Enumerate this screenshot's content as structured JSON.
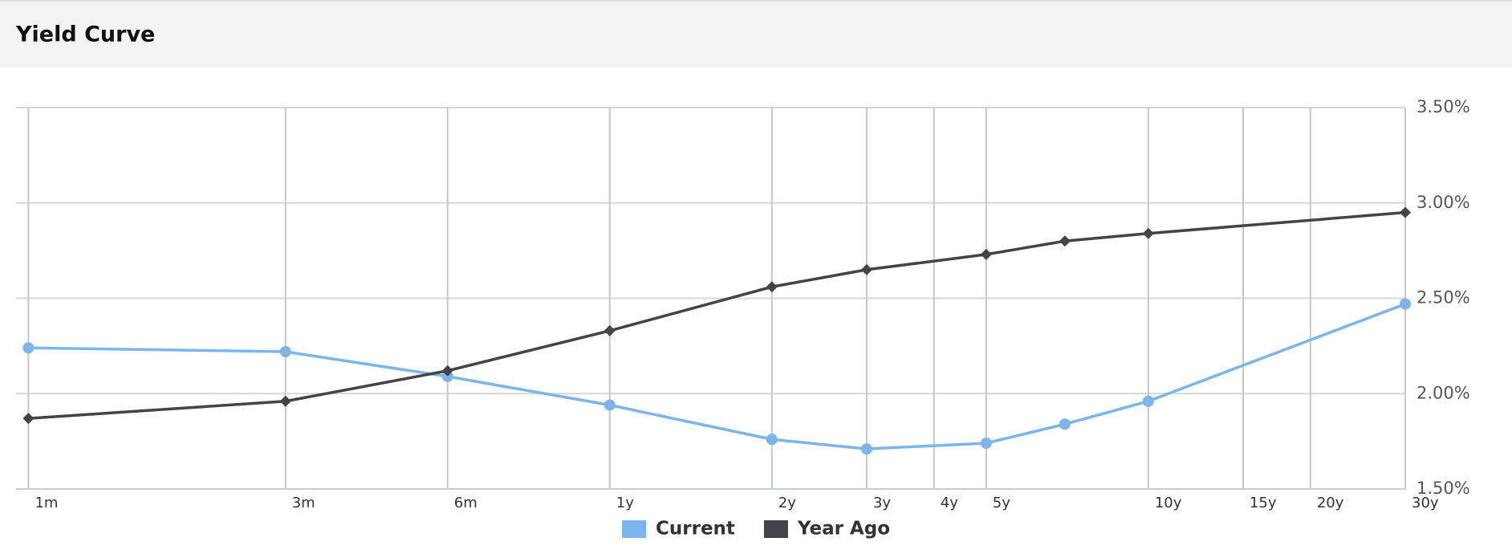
{
  "chart_data": {
    "type": "line",
    "title": "Yield Curve",
    "x": [
      0.0833,
      0.25,
      0.5,
      1,
      2,
      3,
      5,
      7,
      10,
      30
    ],
    "xscale": "log",
    "xlim": [
      0.079,
      30
    ],
    "xticks": [
      {
        "value": 0.0833,
        "label": "1m"
      },
      {
        "value": 0.25,
        "label": "3m"
      },
      {
        "value": 0.5,
        "label": "6m"
      },
      {
        "value": 1,
        "label": "1y"
      },
      {
        "value": 2,
        "label": "2y"
      },
      {
        "value": 3,
        "label": "3y"
      },
      {
        "value": 4,
        "label": "4y"
      },
      {
        "value": 5,
        "label": "5y"
      },
      {
        "value": 10,
        "label": "10y"
      },
      {
        "value": 15,
        "label": "15y"
      },
      {
        "value": 20,
        "label": "20y"
      },
      {
        "value": 30,
        "label": "30y"
      }
    ],
    "ylim": [
      1.5,
      3.5
    ],
    "yticks": [
      {
        "value": 1.5,
        "label": "1.50%"
      },
      {
        "value": 2.0,
        "label": "2.00%"
      },
      {
        "value": 2.5,
        "label": "2.50%"
      },
      {
        "value": 3.0,
        "label": "3.00%"
      },
      {
        "value": 3.5,
        "label": "3.50%"
      }
    ],
    "grid": true,
    "legend": "bottom",
    "series": [
      {
        "name": "Current",
        "color": "#7cb5ec",
        "marker": "circle",
        "values": [
          2.24,
          2.22,
          2.09,
          1.94,
          1.76,
          1.71,
          1.74,
          1.84,
          1.96,
          2.47
        ]
      },
      {
        "name": "Year Ago",
        "color": "#434348",
        "marker": "diamond",
        "values": [
          1.87,
          1.96,
          2.12,
          2.33,
          2.56,
          2.65,
          2.73,
          2.8,
          2.84,
          2.95
        ]
      }
    ]
  }
}
